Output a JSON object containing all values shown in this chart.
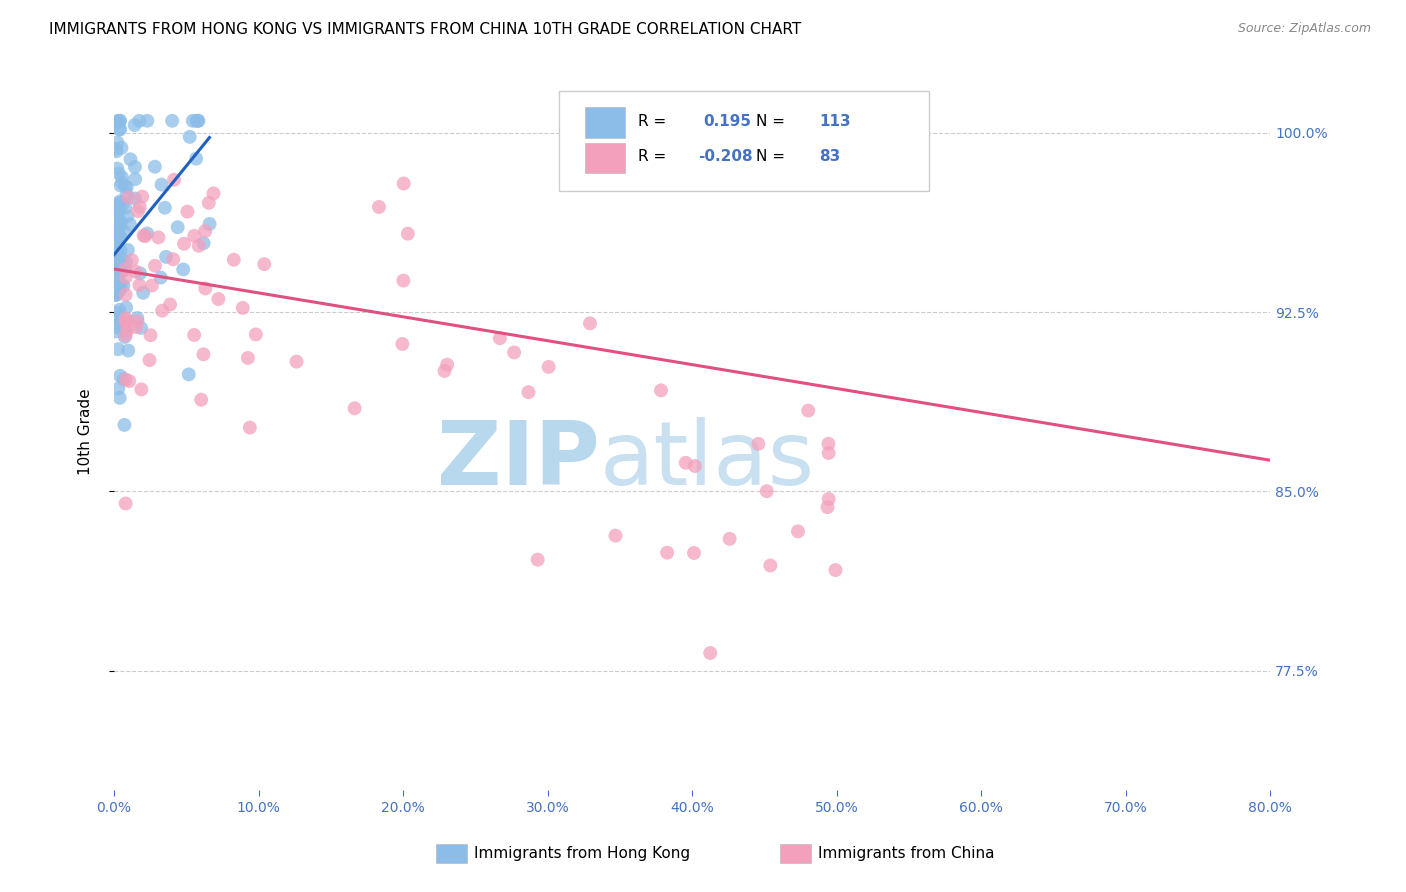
{
  "title": "IMMIGRANTS FROM HONG KONG VS IMMIGRANTS FROM CHINA 10TH GRADE CORRELATION CHART",
  "source": "Source: ZipAtlas.com",
  "ylabel": "10th Grade",
  "ytick_labels": [
    "100.0%",
    "92.5%",
    "85.0%",
    "77.5%"
  ],
  "ytick_values": [
    1.0,
    0.925,
    0.85,
    0.775
  ],
  "xlim": [
    0.0,
    0.8
  ],
  "ylim": [
    0.725,
    1.025
  ],
  "legend_hk_R": "0.195",
  "legend_hk_N": "113",
  "legend_cn_R": "-0.208",
  "legend_cn_N": "83",
  "color_hk": "#8BBDE8",
  "color_cn": "#F2A0BC",
  "color_hk_line": "#2060C0",
  "color_cn_line": "#E05080",
  "watermark_zip": "ZIP",
  "watermark_atlas": "atlas",
  "watermark_color": "#C5DFF0",
  "title_fontsize": 11,
  "blue_color": "#4472C4"
}
